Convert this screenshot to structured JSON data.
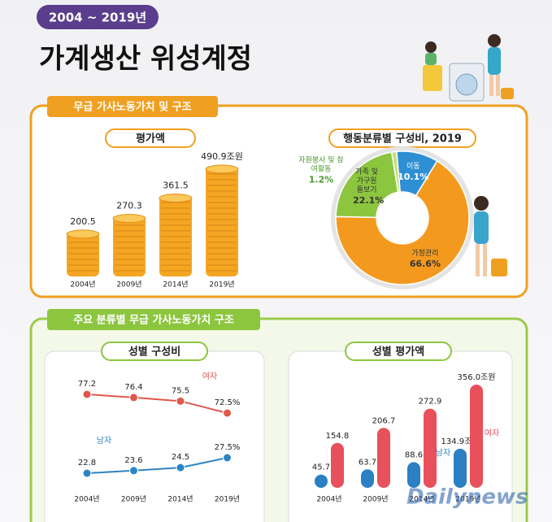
{
  "header": {
    "badge": "2004 ~ 2019년",
    "title": "가계생산 위성계정"
  },
  "sections": [
    {
      "title": "무급 가사노동가치 및 구조"
    },
    {
      "title": "주요 분류별 무급 가사노동가치 구조"
    }
  ],
  "chart_data": [
    {
      "type": "bar",
      "title": "평가액",
      "categories": [
        "2004년",
        "2009년",
        "2014년",
        "2019년"
      ],
      "values": [
        200.5,
        270.3,
        361.5,
        490.9
      ],
      "value_labels": [
        "200.5",
        "270.3",
        "361.5",
        "490.9조원"
      ],
      "color": "#f4a623"
    },
    {
      "type": "pie",
      "title": "행동분류별 구성비, 2019",
      "categories": [
        "이동",
        "가정관리",
        "가족 및 가구원 돌보기",
        "자원봉사 및 참여활동"
      ],
      "values": [
        10.1,
        66.6,
        22.1,
        1.2
      ],
      "value_labels": [
        "10.1%",
        "66.6%",
        "22.1%",
        "1.2%"
      ],
      "colors": [
        "#2f8fd5",
        "#f39a1e",
        "#8cc63f",
        "#c7e27a"
      ]
    },
    {
      "type": "line",
      "title": "성별 구성비",
      "categories": [
        "2004년",
        "2009년",
        "2014년",
        "2019년"
      ],
      "series": [
        {
          "name": "여자",
          "color": "#e0574c",
          "values": [
            77.2,
            76.4,
            75.5,
            72.5
          ],
          "value_labels": [
            "77.2",
            "76.4",
            "75.5",
            "72.5%"
          ]
        },
        {
          "name": "남자",
          "color": "#2b84c4",
          "values": [
            22.8,
            23.6,
            24.5,
            27.5
          ],
          "value_labels": [
            "22.8",
            "23.6",
            "24.5",
            "27.5%"
          ]
        }
      ]
    },
    {
      "type": "bar",
      "title": "성별 평가액",
      "categories": [
        "2004년",
        "2009년",
        "2014년",
        "2019년"
      ],
      "series": [
        {
          "name": "남자",
          "color": "#2b7fc3",
          "values": [
            45.7,
            63.7,
            88.6,
            134.9
          ],
          "value_labels": [
            "45.7",
            "63.7",
            "88.6",
            "134.9조원"
          ]
        },
        {
          "name": "여자",
          "color": "#e8505b",
          "values": [
            154.8,
            206.7,
            272.9,
            356.0
          ],
          "value_labels": [
            "154.8",
            "206.7",
            "272.9",
            "356.0조원"
          ]
        }
      ]
    }
  ],
  "watermark": "Dailynews"
}
